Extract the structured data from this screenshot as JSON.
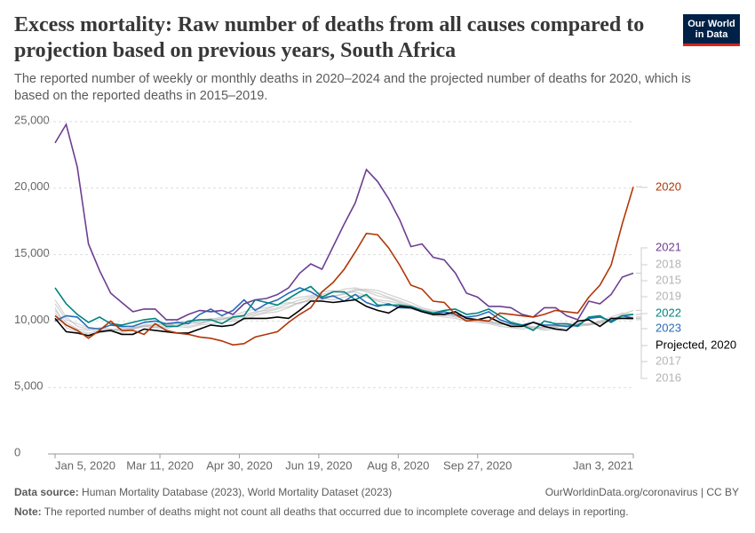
{
  "header": {
    "title": "Excess mortality: Raw number of deaths from all causes compared to projection based on previous years, South Africa",
    "subtitle": "The reported number of weekly or monthly deaths in 2020–2024 and the projected number of deaths for 2020, which is based on the reported deaths in 2015–2019.",
    "logo": "Our World in Data"
  },
  "chart_data": {
    "type": "line",
    "x": [
      "2020-01-05",
      "2020-01-12",
      "2020-01-19",
      "2020-01-26",
      "2020-02-02",
      "2020-02-09",
      "2020-02-16",
      "2020-02-23",
      "2020-03-01",
      "2020-03-08",
      "2020-03-15",
      "2020-03-22",
      "2020-03-29",
      "2020-04-05",
      "2020-04-12",
      "2020-04-19",
      "2020-04-26",
      "2020-05-03",
      "2020-05-10",
      "2020-05-17",
      "2020-05-24",
      "2020-05-31",
      "2020-06-07",
      "2020-06-14",
      "2020-06-21",
      "2020-06-28",
      "2020-07-05",
      "2020-07-12",
      "2020-07-19",
      "2020-07-26",
      "2020-08-02",
      "2020-08-09",
      "2020-08-16",
      "2020-08-23",
      "2020-08-30",
      "2020-09-06",
      "2020-09-13",
      "2020-09-20",
      "2020-09-27",
      "2020-10-04",
      "2020-10-11",
      "2020-10-18",
      "2020-10-25",
      "2020-11-01",
      "2020-11-08",
      "2020-11-15",
      "2020-11-22",
      "2020-11-29",
      "2020-12-06",
      "2020-12-13",
      "2020-12-20",
      "2020-12-27",
      "2021-01-03"
    ],
    "xlim": [
      "2020-01-05",
      "2021-01-03"
    ],
    "xticks": [
      {
        "value": "2020-01-05",
        "label": "Jan 5, 2020"
      },
      {
        "value": "2020-03-11",
        "label": "Mar 11, 2020"
      },
      {
        "value": "2020-04-30",
        "label": "Apr 30, 2020"
      },
      {
        "value": "2020-06-19",
        "label": "Jun 19, 2020"
      },
      {
        "value": "2020-08-08",
        "label": "Aug 8, 2020"
      },
      {
        "value": "2020-09-27",
        "label": "Sep 27, 2020"
      },
      {
        "value": "2021-01-03",
        "label": "Jan 3, 2021"
      }
    ],
    "ylim": [
      0,
      25000
    ],
    "yticks": [
      0,
      {
        "value": 5000,
        "label": "5,000"
      },
      {
        "value": 10000,
        "label": "10,000"
      },
      {
        "value": 15000,
        "label": "15,000"
      },
      {
        "value": 20000,
        "label": "20,000"
      },
      {
        "value": 25000,
        "label": "25,000"
      }
    ],
    "grid": true,
    "series": [
      {
        "name": "2015",
        "color": "#b4b4b4",
        "values": [
          11600,
          10300,
          9600,
          9400,
          9200,
          9400,
          9300,
          9400,
          9600,
          9700,
          9800,
          9600,
          9500,
          9700,
          9800,
          9900,
          10000,
          10100,
          10400,
          10600,
          10700,
          11000,
          11400,
          11500,
          11600,
          11900,
          12000,
          12300,
          12400,
          12300,
          12000,
          11700,
          11400,
          11000,
          10800,
          10700,
          10500,
          10300,
          10100,
          10000,
          9800,
          9700,
          9700,
          9600,
          9500,
          9600,
          9600,
          9700,
          9800,
          9900,
          10100,
          10500,
          10800
        ]
      },
      {
        "name": "2016",
        "color": "#b4b4b4",
        "values": [
          11000,
          9500,
          9200,
          9000,
          9100,
          9300,
          9400,
          9500,
          9600,
          9500,
          9700,
          9800,
          9600,
          9800,
          10000,
          10100,
          10300,
          10500,
          10700,
          10800,
          11000,
          11300,
          11600,
          11800,
          12000,
          12200,
          12400,
          12500,
          12300,
          12100,
          11800,
          11500,
          11200,
          10900,
          10700,
          10500,
          10300,
          10200,
          10000,
          9900,
          9800,
          9700,
          9600,
          9500,
          9500,
          9600,
          9700,
          9600,
          9800,
          10000,
          10100,
          10400,
          10300
        ]
      },
      {
        "name": "2017",
        "color": "#b4b4b4",
        "values": [
          10800,
          9900,
          9400,
          9300,
          9500,
          9400,
          9200,
          9500,
          9700,
          9600,
          9500,
          9900,
          10000,
          9800,
          10100,
          10300,
          10200,
          10400,
          10600,
          10900,
          11200,
          11400,
          11300,
          11700,
          11900,
          11800,
          12100,
          12200,
          11900,
          11600,
          11500,
          11300,
          11000,
          10800,
          10600,
          10400,
          10400,
          10100,
          10000,
          9900,
          9700,
          9800,
          9600,
          9400,
          9600,
          9500,
          9700,
          9800,
          9700,
          9900,
          10000,
          10200,
          10100
        ]
      },
      {
        "name": "2018",
        "color": "#b4b4b4",
        "values": [
          11300,
          10100,
          9800,
          9500,
          9400,
          9300,
          9500,
          9400,
          9700,
          9800,
          9700,
          9600,
          9900,
          10000,
          10200,
          10100,
          10400,
          10700,
          10900,
          11000,
          11200,
          11600,
          11800,
          11900,
          12200,
          12300,
          12100,
          12400,
          12200,
          11900,
          11700,
          11400,
          11100,
          10800,
          10700,
          10600,
          10400,
          10300,
          10100,
          10000,
          9800,
          9600,
          9700,
          9500,
          9400,
          9500,
          9800,
          9900,
          9700,
          10000,
          10300,
          10600,
          10500
        ]
      },
      {
        "name": "2019",
        "color": "#b4b4b4",
        "values": [
          10600,
          9700,
          9300,
          9100,
          9300,
          9200,
          9100,
          9400,
          9600,
          9500,
          9400,
          9700,
          9800,
          9900,
          10000,
          10200,
          10100,
          10300,
          10500,
          10700,
          10900,
          11100,
          11400,
          11600,
          11700,
          11600,
          11800,
          12000,
          11800,
          11500,
          11300,
          11000,
          10900,
          10700,
          10400,
          10300,
          10200,
          10000,
          9900,
          9800,
          9600,
          9500,
          9400,
          9500,
          9300,
          9400,
          9500,
          9600,
          9700,
          9800,
          10000,
          10300,
          10200
        ]
      },
      {
        "name": "2023",
        "color": "#286bbb",
        "values": [
          10000,
          10400,
          10300,
          9500,
          9400,
          9700,
          9600,
          9600,
          9900,
          10000,
          9800,
          9900,
          9800,
          10500,
          10900,
          10400,
          10800,
          11600,
          10800,
          11300,
          11600,
          12100,
          12500,
          12200,
          11700,
          11900,
          11500,
          12000,
          11400,
          11100,
          11300,
          11000,
          11000,
          10700,
          10500,
          10700,
          10500,
          10300,
          10400,
          10700,
          10100,
          9800,
          9700,
          9900,
          9700,
          9700,
          9600,
          9700,
          10200,
          10300,
          10000,
          10400,
          10200
        ]
      },
      {
        "name": "2022",
        "color": "#00847e",
        "values": [
          12500,
          11300,
          10500,
          9900,
          10300,
          9800,
          9700,
          9900,
          10100,
          10200,
          9600,
          9600,
          10000,
          10100,
          10100,
          9800,
          10300,
          10400,
          11600,
          11400,
          11200,
          11700,
          12200,
          12600,
          11800,
          12200,
          12200,
          11600,
          12000,
          11200,
          11200,
          11200,
          11100,
          10800,
          10600,
          10800,
          10900,
          10500,
          10600,
          10900,
          10400,
          9900,
          9700,
          9300,
          10000,
          9800,
          9800,
          9600,
          10300,
          10400,
          9900,
          10400,
          10500
        ]
      },
      {
        "name": "2021",
        "color": "#6d3e91",
        "values": [
          23400,
          24800,
          21600,
          15800,
          13800,
          12100,
          11400,
          10700,
          10900,
          10900,
          10100,
          10100,
          10500,
          10800,
          10700,
          10800,
          10500,
          11300,
          11600,
          11700,
          12000,
          12500,
          13600,
          14300,
          13900,
          15600,
          17300,
          18900,
          21400,
          20500,
          19200,
          17600,
          15600,
          15800,
          14800,
          14600,
          13600,
          12100,
          11800,
          11100,
          11100,
          11000,
          10500,
          10300,
          11000,
          11000,
          10400,
          10100,
          11500,
          11300,
          12000,
          13300,
          13600
        ]
      },
      {
        "name": "Projected, 2020",
        "color": "#000000",
        "values": [
          10200,
          9200,
          9100,
          8900,
          9200,
          9300,
          9000,
          9000,
          9400,
          9300,
          9200,
          9100,
          9100,
          9400,
          9700,
          9600,
          9700,
          10200,
          10200,
          10200,
          10300,
          10200,
          10800,
          11500,
          11500,
          11400,
          11500,
          11600,
          11100,
          10800,
          10600,
          11100,
          11000,
          10700,
          10500,
          10500,
          10700,
          10200,
          10100,
          10300,
          9900,
          9600,
          9600,
          9900,
          9600,
          9400,
          9300,
          10000,
          10100,
          9600,
          10200,
          10200,
          10200
        ]
      },
      {
        "name": "2020",
        "color": "#b13507",
        "values": [
          10400,
          9700,
          9300,
          8700,
          9300,
          10000,
          9300,
          9300,
          9000,
          9800,
          9300,
          9100,
          9000,
          8800,
          8700,
          8500,
          8200,
          8300,
          8800,
          9000,
          9200,
          9900,
          10500,
          11000,
          12200,
          12900,
          13900,
          15200,
          16600,
          16500,
          15500,
          14200,
          12700,
          12400,
          11500,
          11400,
          10500,
          10000,
          10100,
          10000,
          10600,
          10500,
          10400,
          10300,
          10500,
          10800,
          10700,
          10600,
          11800,
          12700,
          14200,
          17300,
          20100
        ]
      }
    ]
  },
  "footer": {
    "source_label": "Data source:",
    "source": "Human Mortality Database (2023), World Mortality Dataset (2023)",
    "url": "OurWorldinData.org/coronavirus | CC BY",
    "note_label": "Note:",
    "note": "The reported number of deaths might not count all deaths that occurred due to incomplete coverage and delays in reporting."
  }
}
